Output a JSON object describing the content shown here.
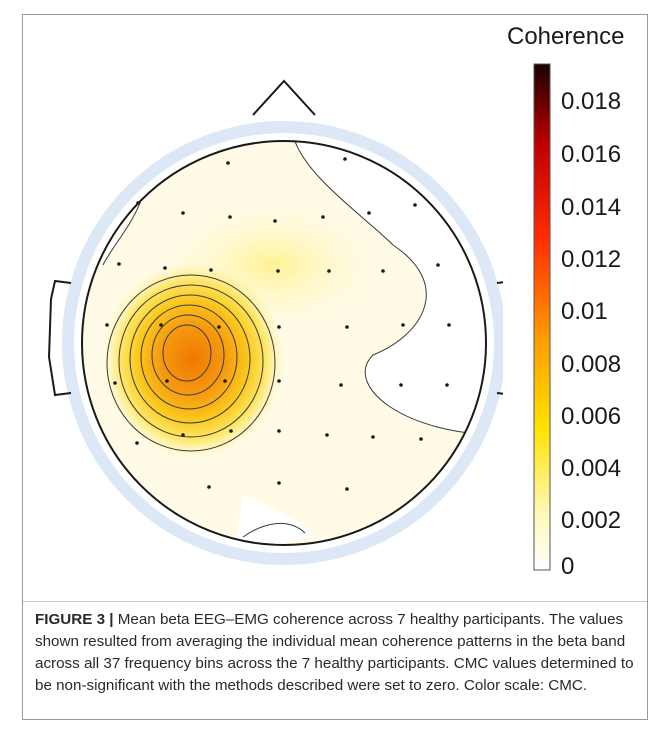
{
  "colorbar": {
    "title": "Coherence",
    "ticks": [
      "0.018",
      "0.016",
      "0.014",
      "0.012",
      "0.01",
      "0.008",
      "0.006",
      "0.004",
      "0.002",
      "0"
    ],
    "max": 0.0195,
    "min": 0
  },
  "colors": {
    "scale_stops": [
      "#ffffff",
      "#fff8b0",
      "#ffe200",
      "#ff9a00",
      "#ff2a00",
      "#c00000",
      "#1a0000"
    ],
    "head_outline": "#1a1a1a",
    "head_ring": "#dce8f6"
  },
  "caption": {
    "label": "FIGURE 3 |",
    "text": " Mean beta EEG–EMG coherence across 7 healthy participants. The values shown resulted from averaging the individual mean coherence patterns in the beta band across all 37 frequency bins across the 7 healthy participants. CMC values determined to be non-significant with the methods described were set to zero. Color scale: CMC."
  }
}
